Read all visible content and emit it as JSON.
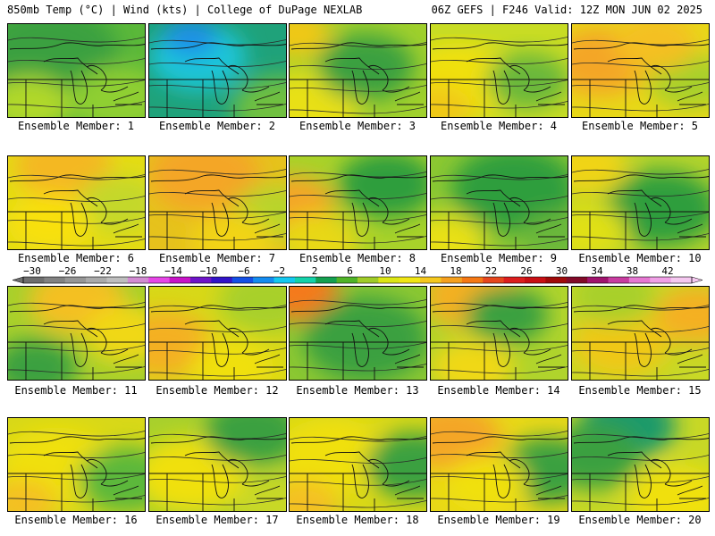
{
  "header": {
    "left": "850mb Temp (°C) | Wind (kts) | College of DuPage NEXLAB",
    "right": "06Z GEFS | F246 Valid: 12Z MON JUN 02 2025"
  },
  "panels": [
    {
      "caption": "Ensemble Member: 1",
      "base": "#5bb83a",
      "blobs": [
        [
          "#3aa040",
          0.3,
          0.3,
          0.5
        ],
        [
          "#8fcf30",
          0.8,
          0.8,
          0.35
        ],
        [
          "#b0d82c",
          0.15,
          0.85,
          0.3
        ]
      ]
    },
    {
      "caption": "Ensemble Member: 2",
      "base": "#1fa27a",
      "blobs": [
        [
          "#1ec6d8",
          0.35,
          0.35,
          0.35
        ],
        [
          "#1e90e8",
          0.3,
          0.15,
          0.2
        ],
        [
          "#6fc040",
          0.95,
          0.9,
          0.35
        ]
      ]
    },
    {
      "caption": "Ensemble Member: 3",
      "base": "#a0d02c",
      "blobs": [
        [
          "#e8e014",
          0.1,
          0.9,
          0.4
        ],
        [
          "#3aa040",
          0.55,
          0.45,
          0.35
        ],
        [
          "#f0c818",
          0.05,
          0.1,
          0.25
        ]
      ]
    },
    {
      "caption": "Ensemble Member: 4",
      "base": "#c8dc24",
      "blobs": [
        [
          "#f0e010",
          0.2,
          0.6,
          0.4
        ],
        [
          "#6ab83a",
          0.7,
          0.6,
          0.3
        ],
        [
          "#f0c818",
          0.05,
          0.9,
          0.25
        ]
      ]
    },
    {
      "caption": "Ensemble Member: 5",
      "base": "#e8d818",
      "blobs": [
        [
          "#f4a626",
          0.2,
          0.4,
          0.35
        ],
        [
          "#a8d02c",
          0.85,
          0.6,
          0.3
        ],
        [
          "#f4c020",
          0.6,
          0.2,
          0.3
        ]
      ]
    },
    {
      "caption": "Ensemble Member: 6",
      "base": "#e4dc14",
      "blobs": [
        [
          "#f4b820",
          0.4,
          0.1,
          0.35
        ],
        [
          "#c4d82a",
          0.8,
          0.5,
          0.3
        ],
        [
          "#f8e010",
          0.3,
          0.7,
          0.3
        ]
      ]
    },
    {
      "caption": "Ensemble Member: 7",
      "base": "#e6c21c",
      "blobs": [
        [
          "#f4a626",
          0.4,
          0.2,
          0.4
        ],
        [
          "#b8d42c",
          0.9,
          0.6,
          0.3
        ],
        [
          "#f2d414",
          0.6,
          0.9,
          0.3
        ]
      ]
    },
    {
      "caption": "Ensemble Member: 8",
      "base": "#a8d22a",
      "blobs": [
        [
          "#f4a626",
          0.02,
          0.5,
          0.3
        ],
        [
          "#2e9e3c",
          0.7,
          0.3,
          0.35
        ],
        [
          "#e8d818",
          0.2,
          0.9,
          0.3
        ]
      ]
    },
    {
      "caption": "Ensemble Member: 9",
      "base": "#8cc832",
      "blobs": [
        [
          "#2e9e3c",
          0.6,
          0.35,
          0.45
        ],
        [
          "#e8e014",
          0.1,
          0.9,
          0.3
        ],
        [
          "#6ab83a",
          0.9,
          0.85,
          0.25
        ]
      ]
    },
    {
      "caption": "Ensemble Member: 10",
      "base": "#b4d42c",
      "blobs": [
        [
          "#2e9e3c",
          0.65,
          0.55,
          0.4
        ],
        [
          "#f0d418",
          0.1,
          0.1,
          0.3
        ],
        [
          "#e0e014",
          0.1,
          0.8,
          0.3
        ]
      ]
    },
    {
      "caption": "Ensemble Member: 11",
      "base": "#a8d02c",
      "blobs": [
        [
          "#f4c020",
          0.5,
          0.15,
          0.35
        ],
        [
          "#3aa040",
          0.2,
          0.85,
          0.3
        ],
        [
          "#f0d818",
          0.85,
          0.5,
          0.3
        ]
      ]
    },
    {
      "caption": "Ensemble Member: 12",
      "base": "#d8d818",
      "blobs": [
        [
          "#f4b020",
          0.1,
          0.6,
          0.35
        ],
        [
          "#a8d02c",
          0.85,
          0.15,
          0.35
        ],
        [
          "#f0e010",
          0.6,
          0.85,
          0.3
        ]
      ]
    },
    {
      "caption": "Ensemble Member: 13",
      "base": "#8cc832",
      "blobs": [
        [
          "#f47a1a",
          0.05,
          0.05,
          0.3
        ],
        [
          "#1aa88c",
          0.6,
          0.65,
          0.3
        ],
        [
          "#3aa040",
          0.55,
          0.55,
          0.45
        ]
      ]
    },
    {
      "caption": "Ensemble Member: 14",
      "base": "#b0d42c",
      "blobs": [
        [
          "#f4b020",
          0.3,
          0.1,
          0.35
        ],
        [
          "#3aa040",
          0.55,
          0.3,
          0.3
        ],
        [
          "#f0d818",
          0.3,
          0.85,
          0.3
        ]
      ]
    },
    {
      "caption": "Ensemble Member: 15",
      "base": "#c8d826",
      "blobs": [
        [
          "#f0c818",
          0.35,
          0.6,
          0.35
        ],
        [
          "#f4b020",
          0.9,
          0.3,
          0.3
        ],
        [
          "#a8d02c",
          0.3,
          0.1,
          0.3
        ]
      ]
    },
    {
      "caption": "Ensemble Member: 16",
      "base": "#d8d818",
      "blobs": [
        [
          "#f0e010",
          0.35,
          0.5,
          0.4
        ],
        [
          "#5bb83a",
          0.85,
          0.65,
          0.35
        ],
        [
          "#f4c020",
          0.1,
          0.9,
          0.25
        ]
      ]
    },
    {
      "caption": "Ensemble Member: 17",
      "base": "#a8d02c",
      "blobs": [
        [
          "#f0e010",
          0.3,
          0.6,
          0.4
        ],
        [
          "#3aa040",
          0.75,
          0.15,
          0.35
        ],
        [
          "#c8d826",
          0.9,
          0.9,
          0.3
        ]
      ]
    },
    {
      "caption": "Ensemble Member: 18",
      "base": "#d8d818",
      "blobs": [
        [
          "#f0e010",
          0.3,
          0.4,
          0.4
        ],
        [
          "#3aa040",
          0.9,
          0.5,
          0.35
        ],
        [
          "#f4c020",
          0.1,
          0.9,
          0.25
        ]
      ]
    },
    {
      "caption": "Ensemble Member: 19",
      "base": "#e8d818",
      "blobs": [
        [
          "#f4a626",
          0.15,
          0.2,
          0.35
        ],
        [
          "#3aa040",
          0.85,
          0.55,
          0.35
        ],
        [
          "#f0e010",
          0.4,
          0.7,
          0.3
        ]
      ]
    },
    {
      "caption": "Ensemble Member: 20",
      "base": "#c8d826",
      "blobs": [
        [
          "#1a9a6a",
          0.4,
          0.08,
          0.35
        ],
        [
          "#3aa040",
          0.15,
          0.4,
          0.35
        ],
        [
          "#f0e010",
          0.75,
          0.85,
          0.35
        ]
      ]
    }
  ],
  "colorbar": {
    "labels": [
      "−30",
      "−26",
      "−22",
      "−18",
      "−14",
      "−10",
      "−6",
      "−2",
      "2",
      "6",
      "10",
      "14",
      "18",
      "22",
      "26",
      "30",
      "34",
      "38",
      "42"
    ],
    "colors": [
      "#6e6e6e",
      "#828282",
      "#969696",
      "#aaaaaa",
      "#bebebe",
      "#d28cd2",
      "#e646e6",
      "#c814c8",
      "#6e14c8",
      "#3214c8",
      "#1450e6",
      "#148cf0",
      "#14c8f0",
      "#14d2aa",
      "#14a050",
      "#50b428",
      "#a0cc28",
      "#dce614",
      "#f0e614",
      "#f5c81e",
      "#f5a01e",
      "#f57814",
      "#e6461e",
      "#dc1e1e",
      "#c80f14",
      "#a00a0a",
      "#820a28",
      "#a0146e",
      "#c83ca0",
      "#e678d2",
      "#f0a0e6",
      "#f5c8f0"
    ]
  }
}
